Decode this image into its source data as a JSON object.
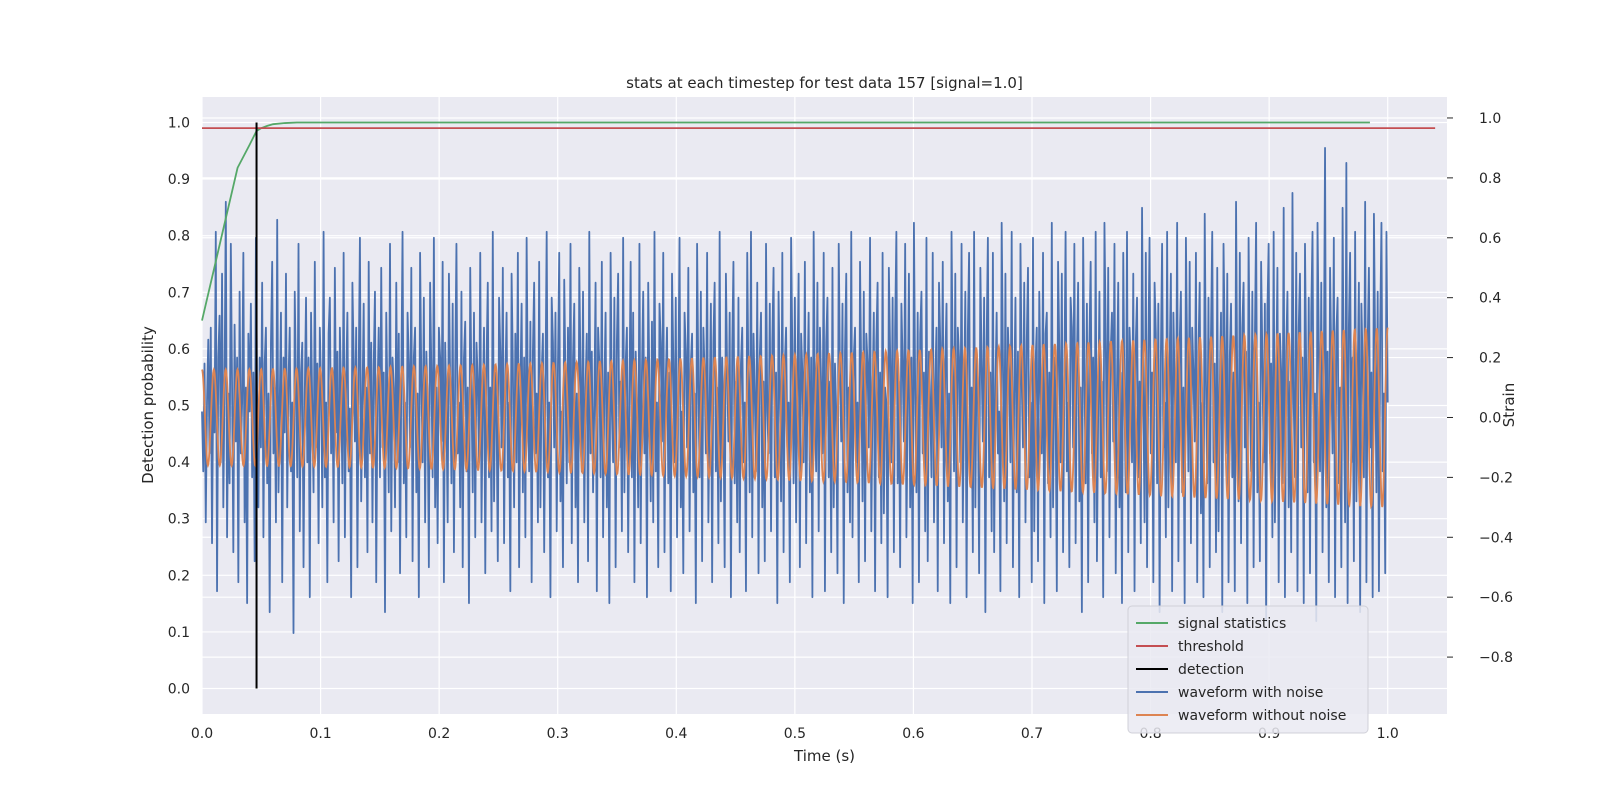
{
  "chart_data": {
    "type": "line",
    "title": "stats at each timestep for test data 157 [signal=1.0]",
    "xlabel": "Time (s)",
    "ylabel": "Detection probability",
    "y2label": "Strain",
    "xlim": [
      0.0,
      1.05
    ],
    "ylim": [
      -0.045,
      1.045
    ],
    "y2lim": [
      -0.99,
      1.07
    ],
    "xticks": [
      "0.0",
      "0.1",
      "0.2",
      "0.3",
      "0.4",
      "0.5",
      "0.6",
      "0.7",
      "0.8",
      "0.9",
      "1.0"
    ],
    "yticks": [
      "0.0",
      "0.1",
      "0.2",
      "0.3",
      "0.4",
      "0.5",
      "0.6",
      "0.7",
      "0.8",
      "0.9",
      "1.0"
    ],
    "y2ticks": [
      "−0.8",
      "−0.6",
      "−0.4",
      "−0.2",
      "0.0",
      "0.2",
      "0.4",
      "0.6",
      "0.8",
      "1.0"
    ],
    "grid": true,
    "legend_position": "lower-right",
    "background": "#eaeaf2",
    "series": [
      {
        "name": "signal statistics",
        "color": "#55a868",
        "axis": "left",
        "x": [
          0.0,
          0.01,
          0.02,
          0.03,
          0.04,
          0.046,
          0.05,
          0.055,
          0.06,
          0.07,
          0.08,
          0.1,
          0.2,
          0.4,
          0.6,
          0.8,
          0.985
        ],
        "y": [
          0.65,
          0.74,
          0.83,
          0.92,
          0.96,
          0.985,
          0.99,
          0.994,
          0.997,
          0.999,
          1.0,
          1.0,
          1.0,
          1.0,
          1.0,
          1.0,
          1.0
        ]
      },
      {
        "name": "threshold",
        "color": "#c44e52",
        "axis": "left",
        "x": [
          0.0,
          1.04
        ],
        "y": [
          0.99,
          0.99
        ]
      },
      {
        "name": "detection",
        "color": "#000000",
        "axis": "left",
        "x": [
          0.046,
          0.046
        ],
        "y": [
          0.0,
          1.0
        ]
      },
      {
        "name": "waveform with noise",
        "color": "#4c72b0",
        "axis": "right",
        "t_start": 0.0,
        "t_end": 1.0,
        "y": [
          0.02,
          -0.18,
          0.18,
          -0.35,
          0.05,
          0.26,
          -0.12,
          0.3,
          -0.42,
          0.15,
          -0.05,
          0.62,
          -0.58,
          0.2,
          0.34,
          -0.15,
          0.48,
          -0.3,
          0.12,
          0.72,
          -0.4,
          0.08,
          -0.22,
          0.58,
          0.1,
          -0.45,
          0.31,
          -0.08,
          0.2,
          -0.55,
          0.42,
          -0.12,
          0.05,
          0.55,
          -0.35,
          0.1,
          -0.62,
          0.28,
          0.02,
          0.38,
          -0.2,
          0.15,
          -0.48,
          0.6,
          0.05,
          -0.3,
          0.2,
          -0.1,
          0.45,
          -0.4,
          0.18,
          0.3,
          -0.22,
          0.08,
          -0.65,
          0.25,
          0.52,
          -0.12,
          0.1,
          -0.35,
          0.66,
          -0.25,
          0.04,
          0.35,
          -0.55,
          0.2,
          -0.05,
          0.48,
          -0.3,
          0.12,
          0.3,
          -0.18,
          0.05,
          -0.72,
          0.42,
          0.1,
          -0.2,
          0.58,
          -0.38,
          0.15,
          0.25,
          -0.5,
          0.08,
          0.4,
          -0.15,
          0.2,
          -0.6,
          0.35,
          0.02,
          -0.25,
          0.52,
          -0.1,
          0.18,
          -0.42,
          0.3,
          0.1,
          -0.3,
          0.62,
          -0.2,
          0.05,
          -0.55,
          0.28,
          0.4,
          -0.12,
          0.15,
          -0.35,
          0.5,
          -0.05,
          0.22,
          -0.48,
          0.3,
          0.08,
          -0.22,
          0.55,
          -0.4,
          0.12,
          0.35,
          -0.18,
          0.03,
          -0.6,
          0.45,
          0.2,
          -0.08,
          0.3,
          -0.5,
          0.15,
          0.6,
          -0.28,
          0.05,
          0.38,
          -0.2,
          0.1,
          -0.45,
          0.52,
          -0.12,
          0.25,
          -0.35,
          0.18,
          0.42,
          -0.55,
          0.08,
          0.3,
          -0.2,
          0.5,
          -0.1,
          0.15,
          -0.65,
          0.35,
          0.05,
          -0.25,
          0.58,
          -0.38,
          0.2,
          0.1,
          -0.3,
          0.45,
          -0.15,
          0.28,
          -0.52,
          0.12,
          0.62,
          -0.22,
          0.05,
          -0.4,
          0.35,
          0.18,
          -0.1,
          0.5,
          -0.48,
          0.2,
          0.3,
          -0.25,
          0.08,
          -0.6,
          0.55,
          0.12,
          -0.15,
          0.4,
          -0.35,
          0.22,
          0.05,
          -0.5,
          0.45,
          0.15,
          -0.2,
          0.6,
          -0.3,
          0.1,
          -0.42,
          0.3,
          0.2,
          -0.08,
          0.52,
          -0.55,
          0.25,
          0.02,
          -0.35,
          0.48,
          0.12,
          -0.22,
          0.38,
          -0.45,
          0.15,
          0.58,
          -0.12,
          0.05,
          -0.3,
          0.42,
          -0.5,
          0.2,
          0.32,
          -0.18,
          0.1,
          -0.62,
          0.5,
          0.08,
          -0.25,
          0.35,
          -0.4,
          0.25,
          0.12,
          -0.15,
          0.55,
          -0.35,
          0.05,
          0.3,
          -0.52,
          0.18,
          0.45,
          -0.2,
          0.1,
          -0.38,
          0.62,
          -0.28,
          0.15,
          0.02,
          -0.48,
          0.4,
          0.22,
          -0.1,
          0.5,
          -0.42,
          0.12,
          0.35,
          -0.2,
          0.05,
          -0.58,
          0.48,
          0.18,
          -0.3,
          0.28,
          -0.15,
          0.55,
          -0.5,
          0.1,
          0.38,
          -0.25,
          0.2,
          -0.4,
          0.6,
          0.05,
          -0.18,
          0.32,
          -0.55,
          0.22,
          0.45,
          -0.12,
          0.08,
          -0.35,
          0.52,
          -0.3,
          0.15,
          0.28,
          -0.45,
          0.1,
          0.62,
          -0.2,
          0.05,
          -0.6,
          0.4,
          0.25,
          -0.1,
          0.35,
          -0.38,
          0.18,
          0.55,
          -0.28,
          0.02,
          -0.5,
          0.46,
          0.12,
          -0.22,
          0.3,
          -0.15,
          0.58,
          -0.42,
          0.2,
          0.38,
          -0.3,
          0.08,
          -0.55,
          0.5,
          0.15,
          -0.18,
          0.42,
          -0.35,
          0.1,
          0.28,
          -0.48,
          0.62,
          -0.12,
          0.22,
          -0.25,
          0.05,
          0.45,
          -0.58,
          0.3,
          0.18,
          -0.2,
          0.52,
          -0.4,
          0.1,
          0.35,
          -0.3,
          0.15,
          -0.62,
          0.55,
          0.02,
          -0.15,
          0.4,
          -0.5,
          0.25,
          0.48,
          -0.1,
          0.12,
          -0.38,
          0.6,
          -0.25,
          0.18,
          0.3,
          -0.45,
          0.08,
          0.52,
          -0.2,
          0.35,
          -0.55,
          0.22,
          0.05,
          -0.3,
          0.58,
          -0.42,
          0.15,
          0.42,
          -0.12,
          0.2,
          -0.6,
          0.45,
          0.1,
          -0.28,
          0.32,
          -0.35,
          0.62,
          -0.18,
          0.05,
          -0.5,
          0.38,
          0.25,
          -0.08,
          0.55,
          -0.45,
          0.12,
          0.3,
          -0.22,
          0.15,
          -0.58,
          0.48,
          0.2,
          -0.15,
          0.4,
          -0.4,
          0.1,
          0.6,
          -0.3,
          0.02,
          -0.52,
          0.35,
          0.22,
          -0.1,
          0.5,
          -0.38,
          0.18,
          0.28,
          -0.25,
          0.08,
          -0.62,
          0.58,
          0.12,
          -0.2,
          0.42,
          -0.48,
          0.3,
          0.15,
          -0.12,
          0.55,
          -0.35,
          0.05,
          0.38,
          -0.55,
          0.25,
          0.45,
          -0.18,
          0.1,
          -0.42,
          0.62,
          -0.28,
          0.2,
          0.02,
          -0.5,
          0.48,
          0.15,
          -0.08,
          0.35,
          -0.6,
          0.22,
          0.52,
          -0.22,
          0.12,
          -0.35,
          0.4,
          -0.45,
          0.18,
          0.3,
          -0.15,
          0.05,
          -0.58,
          0.55,
          0.1,
          -0.25,
          0.62,
          -0.4,
          0.28,
          0.08,
          -0.18,
          0.45,
          -0.52,
          0.2,
          0.35,
          -0.3,
          0.12,
          -0.48,
          0.58,
          0.02,
          -0.12,
          0.38,
          -0.38,
          0.25,
          0.5,
          -0.2,
          0.15,
          -0.62,
          0.42,
          0.1,
          -0.28,
          0.55,
          -0.45,
          0.18,
          0.3,
          -0.1,
          0.05,
          -0.55,
          0.6,
          0.22,
          -0.22,
          0.4,
          -0.35,
          0.12,
          0.48,
          -0.5,
          0.28,
          0.15,
          -0.15,
          0.52,
          -0.42,
          0.08,
          0.35,
          -0.25,
          0.2,
          -0.6,
          0.62,
          0.05,
          -0.18,
          0.45,
          -0.38,
          0.3,
          0.1,
          -0.12,
          0.55,
          -0.58,
          0.25,
          0.4,
          -0.2,
          0.12,
          -0.45,
          0.5,
          -0.3,
          0.18,
          0.02,
          -0.52,
          0.58,
          0.15,
          -0.08,
          0.38,
          -0.62,
          0.22,
          0.48,
          -0.25,
          0.1,
          -0.35,
          0.62,
          -0.4,
          0.2,
          0.3,
          -0.15,
          0.05,
          -0.55,
          0.52,
          0.12,
          -0.28,
          0.42,
          -0.48,
          0.28,
          0.18,
          -0.1,
          0.6,
          -0.38,
          0.08,
          0.35,
          -0.58,
          0.25,
          0.45,
          -0.2,
          0.15,
          -0.42,
          0.55,
          -0.32,
          0.1,
          0.05,
          -0.6,
          0.5,
          0.22,
          -0.15,
          0.4,
          -0.45,
          0.3,
          0.62,
          -0.22,
          0.12,
          -0.5,
          0.38,
          0.18,
          -0.08,
          0.58,
          -0.4,
          0.02,
          0.48,
          -0.3,
          0.2,
          -0.62,
          0.65,
          0.1,
          -0.25,
          0.35,
          -0.55,
          0.28,
          0.42,
          -0.12,
          0.15,
          -0.38,
          0.6,
          -0.48,
          0.22,
          0.05,
          -0.2,
          0.55,
          -0.35,
          0.12,
          0.3,
          -0.58,
          0.45,
          0.25,
          -0.1,
          0.52,
          -0.42,
          0.18,
          0.38,
          -0.28,
          0.08,
          -0.62,
          0.62,
          0.15,
          -0.18,
          0.48,
          -0.5,
          0.3,
          0.2,
          -0.15,
          0.58,
          -0.35,
          0.05,
          0.42,
          -0.6,
          0.28,
          0.55,
          -0.22,
          0.1,
          -0.45,
          0.62,
          -0.3,
          0.22,
          0.12,
          -0.52,
          0.5,
          0.18,
          -0.08,
          0.4,
          -0.65,
          0.25,
          0.6,
          -0.2,
          0.15,
          -0.38,
          0.55,
          -0.45,
          0.1,
          0.35,
          -0.12,
          0.02,
          -0.58,
          0.65,
          0.2,
          -0.28,
          0.48,
          -0.42,
          0.3,
          0.15,
          -0.15,
          0.62,
          -0.5,
          0.08,
          0.4,
          -0.25,
          0.22,
          -0.6,
          0.58,
          0.12,
          -0.1,
          0.45,
          -0.35,
          0.25,
          0.5,
          -0.2,
          0.05,
          -0.55,
          0.6,
          -0.38,
          0.18,
          0.3,
          -0.48,
          0.42,
          0.1,
          -0.12,
          0.55,
          -0.62,
          0.28,
          0.35,
          -0.22,
          0.15,
          -0.4,
          0.65,
          -0.3,
          0.2,
          0.08,
          -0.58,
          0.52,
          0.22,
          -0.15,
          0.48,
          -0.45,
          0.12,
          0.62,
          -0.18,
          0.05,
          -0.5,
          0.4,
          0.3,
          -0.1,
          0.58,
          -0.42,
          0.18,
          0.45,
          -0.28,
          0.1,
          -0.65,
          0.6,
          0.15,
          -0.22,
          0.38,
          -0.55,
          0.25,
          0.52,
          -0.12,
          0.2,
          -0.35,
          0.62,
          -0.48,
          0.02,
          0.42,
          -0.2,
          0.12,
          -0.6,
          0.65,
          0.28,
          -0.18,
          0.5,
          -0.4,
          0.22,
          0.35,
          -0.08,
          0.58,
          -0.52,
          0.1,
          0.45,
          -0.3,
          0.15,
          -0.62,
          0.55,
          0.05,
          -0.25,
          0.62,
          -0.45,
          0.3,
          0.18,
          -0.15,
          0.48,
          -0.58,
          0.25,
          0.4,
          -0.2,
          0.12,
          -0.42,
          0.7,
          0.08,
          -0.35,
          0.55,
          -0.5,
          0.22,
          0.6,
          -0.12,
          0.15,
          -0.55,
          0.45,
          0.28,
          -0.22,
          0.38,
          -0.65,
          0.2,
          0.58,
          -0.1,
          0.05,
          -0.4,
          0.62,
          -0.3,
          0.18,
          0.48,
          -0.58,
          0.35,
          0.12,
          -0.15,
          0.65,
          -0.48,
          0.25,
          0.42,
          -0.25,
          0.1,
          -0.62,
          0.6,
          0.2,
          -0.18,
          0.52,
          -0.42,
          0.3,
          0.15,
          -0.08,
          0.55,
          -0.55,
          0.22,
          0.45,
          -0.32,
          0.05,
          -0.6,
          0.68,
          0.12,
          -0.22,
          0.4,
          -0.5,
          0.28,
          0.62,
          -0.15,
          0.18,
          -0.45,
          0.5,
          -0.38,
          0.1,
          0.35,
          -0.65,
          0.58,
          0.25,
          -0.12,
          0.48,
          -0.55,
          0.2,
          0.38,
          -0.2,
          0.15,
          -0.58,
          0.72,
          0.08,
          -0.28,
          0.55,
          -0.42,
          0.3,
          0.45,
          -0.1,
          0.22,
          -0.62,
          0.6,
          0.12,
          -0.18,
          0.42,
          -0.5,
          0.25,
          0.65,
          -0.25,
          0.05,
          -0.48,
          0.52,
          0.2,
          -0.15,
          0.38,
          -0.68,
          0.35,
          0.58,
          -0.12,
          0.18,
          -0.4,
          0.62,
          -0.35,
          0.1,
          0.5,
          -0.55,
          0.28,
          0.15,
          -0.22,
          0.7,
          -0.6,
          0.22,
          0.42,
          -0.3,
          0.12,
          -0.45,
          0.75,
          0.05,
          -0.2,
          0.55,
          -0.58,
          0.3,
          0.48,
          -0.1,
          0.2,
          -0.62,
          0.58,
          0.15,
          -0.25,
          0.4,
          -0.52,
          0.35,
          0.62,
          -0.15,
          0.08,
          -0.68,
          0.65,
          0.25,
          -0.18,
          0.45,
          -0.45,
          0.12,
          0.9,
          -0.3,
          0.22,
          -0.55,
          0.5,
          0.18,
          -0.12,
          0.6,
          -0.6,
          0.28,
          0.4,
          -0.22,
          0.1,
          -0.5,
          0.7,
          0.05,
          -0.35,
          0.85,
          -0.62,
          0.3,
          0.55,
          -0.15,
          0.2,
          -0.48,
          0.62,
          -0.28,
          0.12,
          0.45,
          -0.65,
          0.38,
          0.18,
          -0.2,
          0.72,
          -0.55,
          0.25,
          0.5,
          -0.1,
          0.15,
          -0.6,
          0.68,
          0.22,
          -0.25,
          0.42,
          -0.58,
          0.3,
          0.65,
          -0.18,
          0.08,
          -0.52,
          0.62,
          0.05
        ]
      },
      {
        "name": "waveform without noise",
        "color": "#dd8452",
        "axis": "right",
        "cycles": 100,
        "amp_start": 0.16,
        "amp_end": 0.3,
        "t_start": 0.0,
        "t_end": 1.0
      }
    ]
  }
}
